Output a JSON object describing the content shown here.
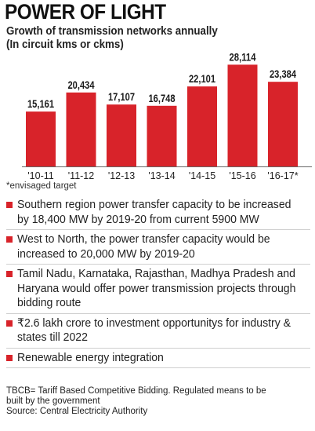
{
  "header": {
    "title": "POWER OF LIGHT",
    "subtitle_line1": "Growth of transmission networks annually",
    "subtitle_line2": "(In circuit kms or ckms)"
  },
  "chart_data": {
    "type": "bar",
    "categories": [
      "'10-11",
      "'11-12",
      "'12-13",
      "'13-14",
      "'14-15",
      "'15-16",
      "'16-17*"
    ],
    "values": [
      15161,
      20434,
      17107,
      16748,
      22101,
      28114,
      23384
    ],
    "value_labels": [
      "15,161",
      "20,434",
      "17,107",
      "16,748",
      "22,101",
      "28,114",
      "23,384"
    ],
    "ylim": [
      0,
      29500
    ],
    "grid": false,
    "bar_color": "#d8232a"
  },
  "footnote": "*envisaged target",
  "points": [
    "Southern region power transfer capacity to be increased by 18,400 MW by 2019-20 from current 5900 MW",
    "West to North, the power transfer capacity would be increased to 20,000 MW by 2019-20",
    "Tamil Nadu, Karnataka, Rajasthan, Madhya Pradesh and Haryana would offer power transmission projects through bidding route",
    "₹2.6 lakh crore to investment opportunitys for industry & states till 2022",
    "Renewable energy integration"
  ],
  "note_line1": "TBCB= Tariff Based Competitive Bidding. Regulated means to be",
  "note_line2": "built by the government",
  "source": "Source: Central Electricity Authority",
  "colors": {
    "accent": "#d8232a",
    "baseline": "#666666"
  }
}
